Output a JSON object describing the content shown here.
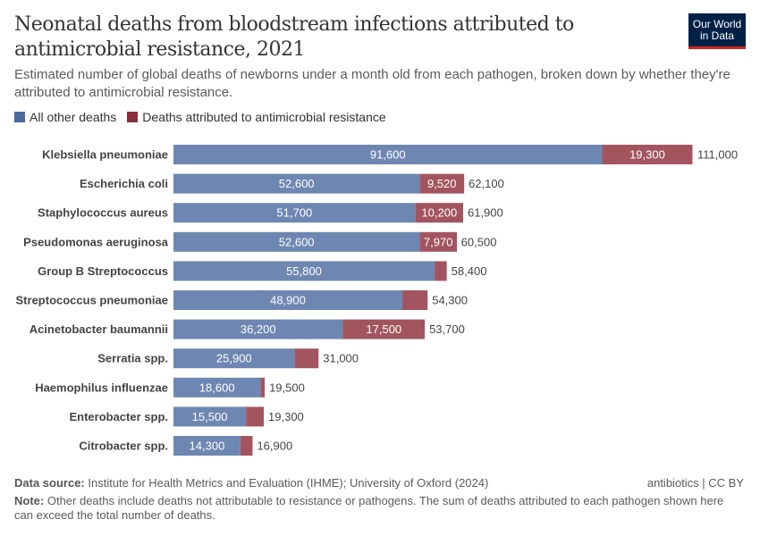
{
  "header": {
    "title": "Neonatal deaths from bloodstream infections attributed to antimicrobial resistance, 2021",
    "subtitle": "Estimated number of global deaths of newborns under a month old from each pathogen, broken down by whether they're attributed to antimicrobial resistance.",
    "logo_line1": "Our World",
    "logo_line2": "in Data"
  },
  "footer": {
    "source_label": "Data source:",
    "source": "Institute for Health Metrics and Evaluation (IHME); University of Oxford (2024)",
    "license": "antibiotics | CC BY",
    "note_label": "Note:",
    "note": "Other deaths include deaths not attributable to resistance or pathogens. The sum of deaths attributed to each pathogen shown here can exceed the total number of deaths."
  },
  "chart_data": {
    "type": "bar",
    "orientation": "horizontal",
    "stacked": true,
    "legend_position": "top-left",
    "grid": false,
    "categories": [
      "Klebsiella pneumoniae",
      "Escherichia coli",
      "Staphylococcus aureus",
      "Pseudomonas aeruginosa",
      "Group B Streptococcus",
      "Streptococcus pneumoniae",
      "Acinetobacter baumannii",
      "Serratia spp.",
      "Haemophilus influenzae",
      "Enterobacter spp.",
      "Citrobacter spp."
    ],
    "series": [
      {
        "name": "All other deaths",
        "color": "#6e87b2",
        "legend_color": "#4c6a9c",
        "values": [
          91600,
          52600,
          51700,
          52600,
          55800,
          48900,
          36200,
          25900,
          18600,
          15500,
          14300
        ]
      },
      {
        "name": "Deaths attributed to antimicrobial resistance",
        "color": "#a3555f",
        "legend_color": "#883039",
        "values": [
          19300,
          9520,
          10200,
          7970,
          2600,
          5400,
          17500,
          5100,
          900,
          3800,
          2600
        ]
      }
    ],
    "totals": [
      111000,
      62100,
      61900,
      60500,
      58400,
      54300,
      53700,
      31000,
      19500,
      19300,
      16900
    ],
    "xlim": [
      0,
      111000
    ]
  }
}
